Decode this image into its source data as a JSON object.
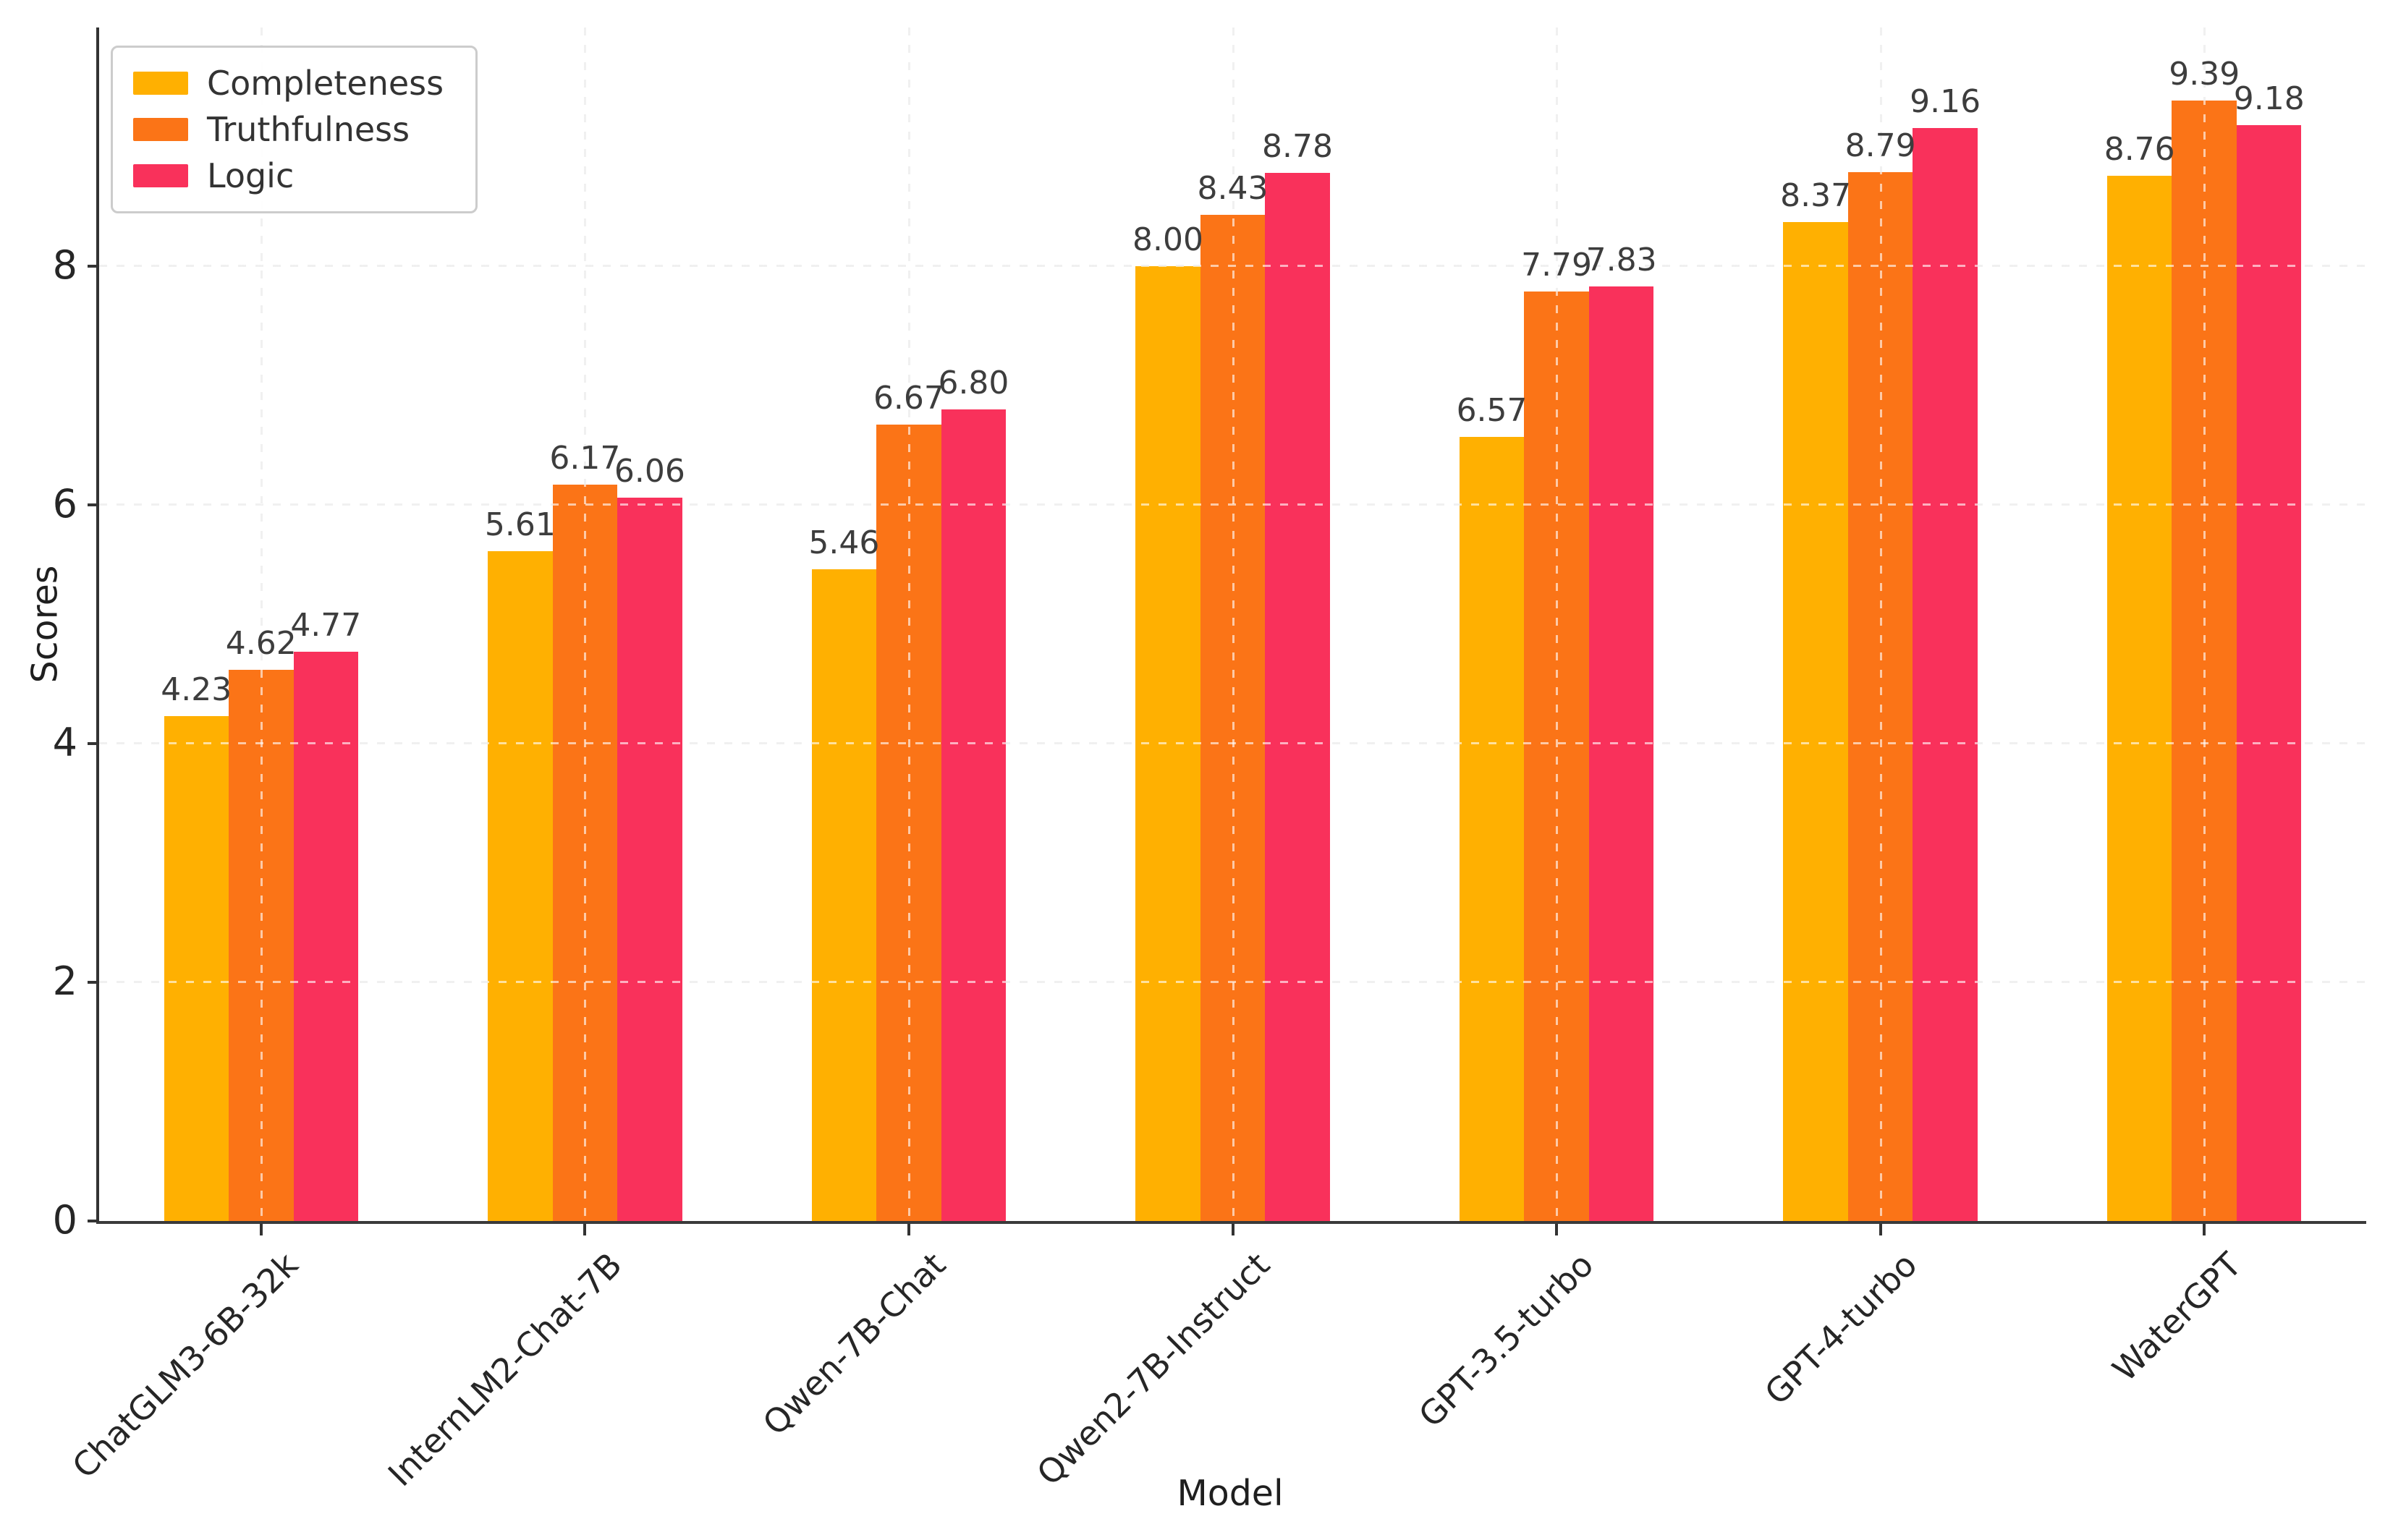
{
  "chart_data": {
    "type": "bar",
    "title": "",
    "xlabel": "Model",
    "ylabel": "Scores",
    "categories": [
      "ChatGLM3-6B-32k",
      "InternLM2-Chat-7B",
      "Qwen-7B-Chat",
      "Qwen2-7B-Instruct",
      "GPT-3.5-turbo",
      "GPT-4-turbo",
      "WaterGPT"
    ],
    "series": [
      {
        "name": "Completeness",
        "color": "#FFB001",
        "values": [
          4.23,
          5.61,
          5.46,
          8.0,
          6.57,
          8.37,
          8.76
        ]
      },
      {
        "name": "Truthfulness",
        "color": "#FB7417",
        "values": [
          4.62,
          6.17,
          6.67,
          8.43,
          7.79,
          8.79,
          9.39
        ]
      },
      {
        "name": "Logic",
        "color": "#F9315B",
        "values": [
          4.77,
          6.06,
          6.8,
          8.78,
          7.83,
          9.16,
          9.18
        ]
      }
    ],
    "ylim": [
      0,
      10
    ],
    "yticks": [
      "0",
      "2",
      "4",
      "6",
      "8"
    ],
    "grid": true,
    "grid_style": "dashed",
    "legend_position": "upper left",
    "value_label_decimals": 2,
    "colors": {
      "grid": "#d9d9d9",
      "spine": "#333333",
      "tick_text": "#262626",
      "value_text": "#3d3d3d",
      "background": "#ffffff"
    }
  }
}
